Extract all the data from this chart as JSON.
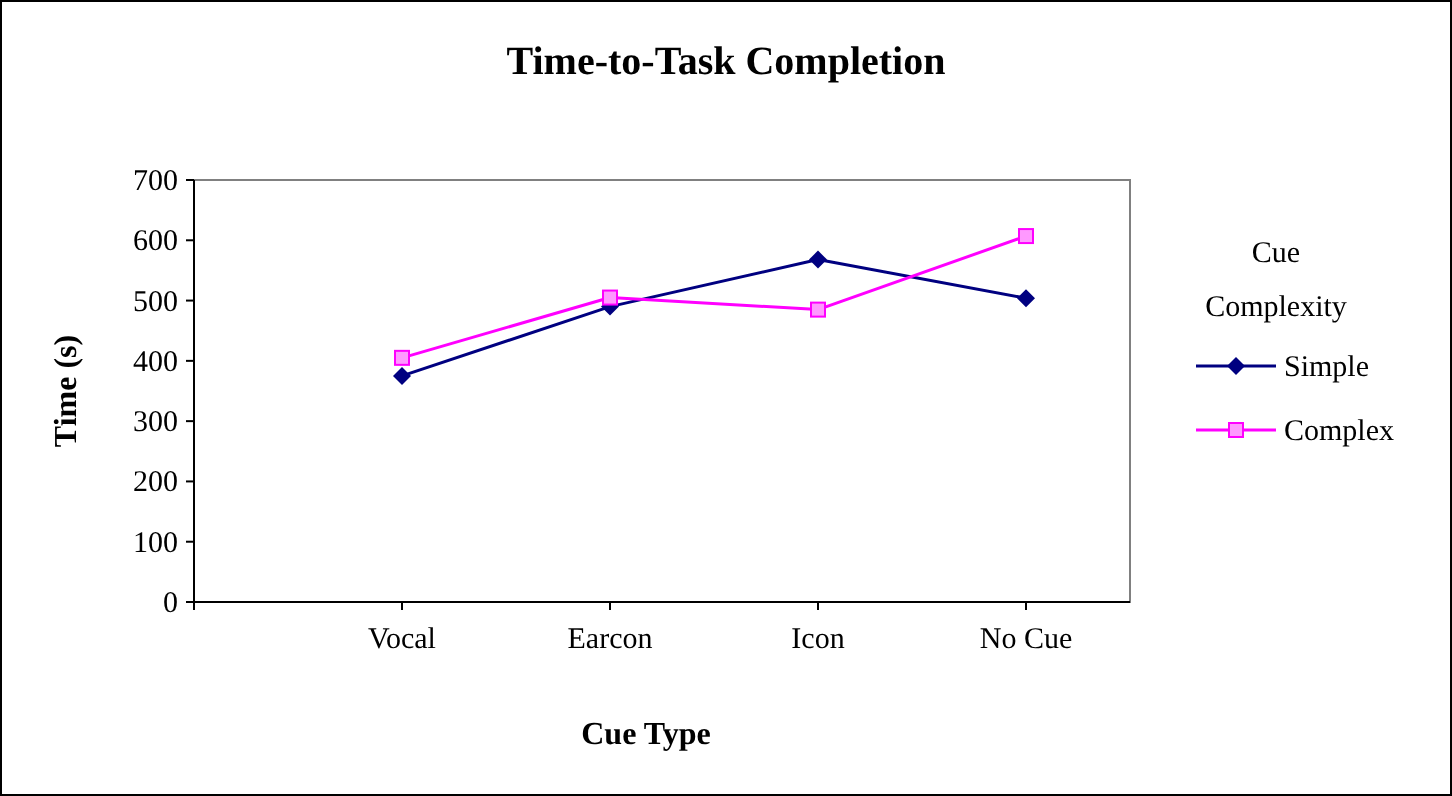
{
  "chart_data": {
    "type": "line",
    "title": "Time-to-Task Completion",
    "xlabel": "Cue Type",
    "ylabel": "Time (s)",
    "legend_title": "Cue Complexity",
    "legend": "right",
    "categories": [
      null,
      "Vocal",
      "Earcon",
      "Icon",
      "No Cue"
    ],
    "series": [
      {
        "name": "Simple",
        "color": "#000080",
        "marker": "diamond",
        "values": [
          null,
          375,
          490,
          568,
          504
        ]
      },
      {
        "name": "Complex",
        "color": "#ff00ff",
        "marker": "square",
        "values": [
          null,
          405,
          505,
          485,
          607
        ]
      }
    ],
    "ylim": [
      0,
      700
    ],
    "yticks": [
      0,
      100,
      200,
      300,
      400,
      500,
      600,
      700
    ],
    "grid": false
  }
}
